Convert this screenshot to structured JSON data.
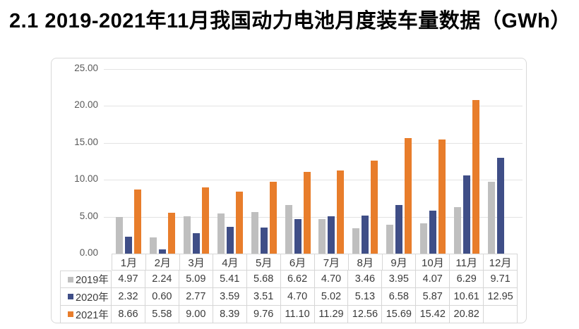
{
  "page": {
    "title": "2.1 2019-2021年11月我国动力电池月度装车量数据（GWh）"
  },
  "chart_data": {
    "type": "bar",
    "title": "2.1 2019-2021年11月我国动力电池月度装车量数据（GWh）",
    "categories": [
      "1月",
      "2月",
      "3月",
      "4月",
      "5月",
      "6月",
      "7月",
      "8月",
      "9月",
      "10月",
      "11月",
      "12月"
    ],
    "series": [
      {
        "name": "2019年",
        "color": "#bfbfbf",
        "values": [
          4.97,
          2.24,
          5.09,
          5.41,
          5.68,
          6.62,
          4.7,
          3.46,
          3.95,
          4.07,
          6.29,
          9.71
        ]
      },
      {
        "name": "2020年",
        "color": "#3f4e87",
        "values": [
          2.32,
          0.6,
          2.77,
          3.59,
          3.51,
          4.7,
          5.02,
          5.13,
          6.58,
          5.87,
          10.61,
          12.95
        ]
      },
      {
        "name": "2021年",
        "color": "#e87d2b",
        "values": [
          8.66,
          5.58,
          9.0,
          8.39,
          9.76,
          11.1,
          11.29,
          12.56,
          15.69,
          15.42,
          20.82,
          null
        ]
      }
    ],
    "xlabel": "",
    "ylabel": "",
    "ylim": [
      0,
      25
    ],
    "yticks": [
      "25.00",
      "20.00",
      "15.00",
      "10.00",
      "5.00",
      "0.00"
    ],
    "grid": true,
    "legend_position": "table-rows-left",
    "value_format": "two-decimals",
    "colors": {
      "grid": "#e3e3e3",
      "table_border": "#d6d6d6",
      "axis_text": "#595959",
      "table_text": "#3a3a3a",
      "frame_border": "#d9d9d9",
      "background": "#ffffff"
    }
  }
}
